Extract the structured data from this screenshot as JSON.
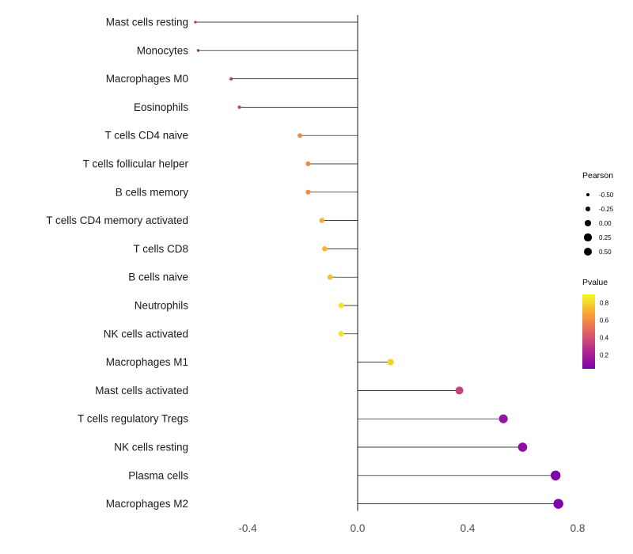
{
  "chart_data": {
    "type": "lollipop",
    "title": "",
    "xlabel": "",
    "ylabel": "",
    "grid": false,
    "xlim": [
      -0.65,
      0.85
    ],
    "x_ticks": [
      "-0.4",
      "0.0",
      "0.4",
      "0.8"
    ],
    "points": [
      {
        "label": "Mast cells resting",
        "pearson": -0.59,
        "pvalue": 0.25
      },
      {
        "label": "Monocytes",
        "pearson": -0.58,
        "pvalue": 0.2
      },
      {
        "label": "Macrophages M0",
        "pearson": -0.46,
        "pvalue": 0.3
      },
      {
        "label": "Eosinophils",
        "pearson": -0.43,
        "pvalue": 0.35
      },
      {
        "label": "T cells CD4 naive",
        "pearson": -0.21,
        "pvalue": 0.6
      },
      {
        "label": "T cells follicular helper",
        "pearson": -0.18,
        "pvalue": 0.6
      },
      {
        "label": "B cells memory",
        "pearson": -0.18,
        "pvalue": 0.6
      },
      {
        "label": "T cells CD4 memory activated",
        "pearson": -0.13,
        "pvalue": 0.7
      },
      {
        "label": "T cells CD8",
        "pearson": -0.12,
        "pvalue": 0.72
      },
      {
        "label": "B cells naive",
        "pearson": -0.1,
        "pvalue": 0.75
      },
      {
        "label": "Neutrophils",
        "pearson": -0.06,
        "pvalue": 0.85
      },
      {
        "label": "NK cells activated",
        "pearson": -0.06,
        "pvalue": 0.85
      },
      {
        "label": "Macrophages M1",
        "pearson": 0.12,
        "pvalue": 0.8
      },
      {
        "label": "Mast cells activated",
        "pearson": 0.37,
        "pvalue": 0.35
      },
      {
        "label": "T cells regulatory Tregs",
        "pearson": 0.53,
        "pvalue": 0.15
      },
      {
        "label": "NK cells resting",
        "pearson": 0.6,
        "pvalue": 0.12
      },
      {
        "label": "Plasma cells",
        "pearson": 0.72,
        "pvalue": 0.05
      },
      {
        "label": "Macrophages M2",
        "pearson": 0.73,
        "pvalue": 0.05
      }
    ],
    "legend": {
      "size": {
        "title": "Pearson",
        "entries": [
          "-0.50",
          "-0.25",
          "0.00",
          "0.25",
          "0.50"
        ]
      },
      "color": {
        "title": "Pvalue",
        "ticks": [
          "0.8",
          "0.6",
          "0.4",
          "0.2"
        ],
        "scale_range": [
          0.9,
          0.05
        ]
      }
    },
    "colors": {
      "stem": "#000000",
      "zero_line": "#000000",
      "plasma_stops": [
        "#f0f921",
        "#fca636",
        "#e16462",
        "#b12a90",
        "#7e03a8"
      ]
    }
  }
}
